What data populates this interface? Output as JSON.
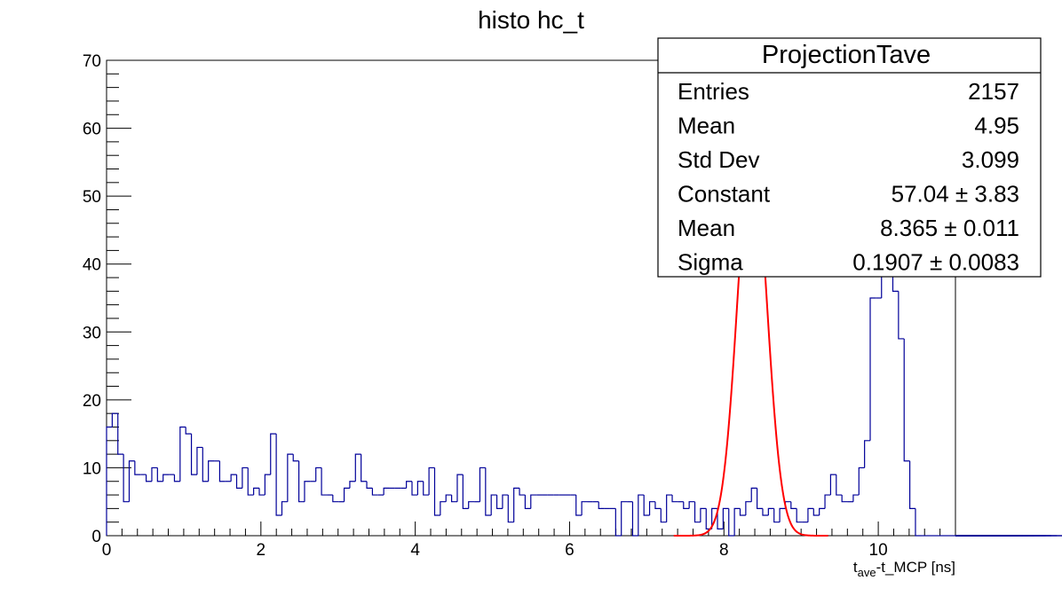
{
  "chart_data": {
    "type": "histogram",
    "title": "histo hc_t",
    "xlabel": {
      "main": "t",
      "subscript": "ave",
      "rest": "-t_MCP [ns]"
    },
    "ylabel": "",
    "xlim": [
      0,
      11
    ],
    "ylim": [
      0,
      70
    ],
    "bin_width": 0.0733,
    "x_ticks": [
      0,
      2,
      4,
      6,
      8,
      10
    ],
    "y_ticks": [
      0,
      10,
      20,
      30,
      40,
      50,
      60,
      70
    ],
    "line_color": "#000099",
    "fit_color": "#ff0000",
    "histogram": {
      "name": "ProjectionTave",
      "values": [
        16,
        18,
        12,
        5,
        11,
        9,
        9,
        8,
        10,
        8,
        9,
        9,
        8,
        16,
        15,
        9,
        13,
        8,
        11,
        11,
        8,
        8,
        9,
        7,
        10,
        6,
        7,
        6,
        9,
        15,
        3,
        5,
        12,
        11,
        5,
        8,
        8,
        10,
        6,
        6,
        5,
        5,
        7,
        8,
        12,
        8,
        7,
        6,
        6,
        7,
        7,
        7,
        7,
        8,
        6,
        8,
        6,
        10,
        3,
        5,
        6,
        5,
        9,
        4,
        5,
        5,
        10,
        3,
        6,
        4,
        6,
        2,
        7,
        6,
        4,
        6,
        6,
        6,
        6,
        6,
        6,
        6,
        6,
        3,
        5,
        5,
        5,
        4,
        4,
        4,
        0,
        5,
        5,
        0,
        6,
        3,
        5,
        4,
        2,
        6,
        5,
        5,
        4,
        5,
        2,
        4,
        1,
        4,
        1,
        4,
        0,
        4,
        3,
        5,
        7,
        4,
        3,
        4,
        2,
        4,
        5,
        4,
        2,
        2,
        4,
        3,
        4,
        6,
        9,
        6,
        5,
        5,
        6,
        10,
        14,
        35,
        35,
        53,
        55,
        36,
        29,
        11,
        4,
        0,
        0,
        0,
        0,
        0,
        0,
        0,
        0,
        0,
        0,
        0,
        0,
        0,
        0,
        0,
        0,
        0,
        0,
        0,
        0,
        0,
        0,
        0,
        0,
        0,
        0,
        0,
        0
      ]
    },
    "fit": {
      "function": "gaus",
      "constant": 57.04,
      "mean": 8.365,
      "sigma": 0.1907,
      "range": [
        7.35,
        9.35
      ]
    },
    "stats_box": {
      "title": "ProjectionTave",
      "rows": [
        {
          "label": "Entries",
          "value": "2157"
        },
        {
          "label": "Mean",
          "value": "4.95"
        },
        {
          "label": "Std Dev",
          "value": "3.099"
        },
        {
          "label": "Constant",
          "value": "57.04 ± 3.83"
        },
        {
          "label": "Mean",
          "value": "8.365 ± 0.011"
        },
        {
          "label": "Sigma",
          "value": "0.1907 ± 0.0083"
        }
      ]
    }
  }
}
